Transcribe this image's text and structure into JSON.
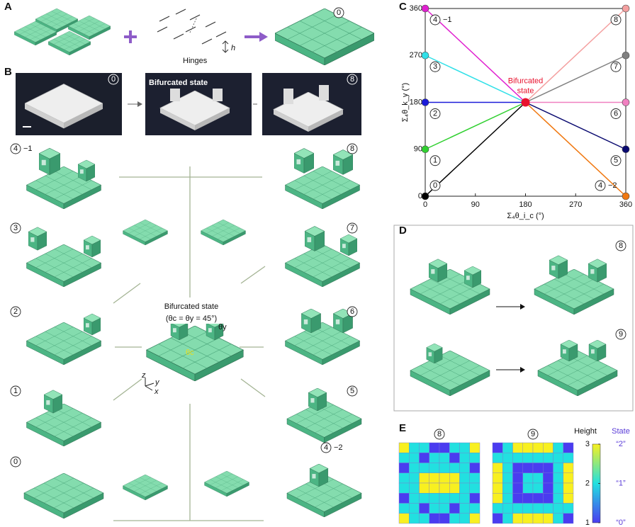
{
  "panel_labels": [
    "A",
    "B",
    "C",
    "D",
    "E"
  ],
  "panel_a": {
    "state": "0",
    "hinges": "Hinges",
    "h": "h"
  },
  "panel_b": {
    "photo_states": [
      "0",
      "8"
    ],
    "photo_caption": "Bifurcated state",
    "center_title": "Bifurcated state",
    "center_subtitle": "(θc = θy = 45°)",
    "angle_y": "θy",
    "angle_c": "θc",
    "axes": [
      "z",
      "y",
      "x"
    ],
    "left_states": [
      {
        "state": "4",
        "suffix": "−1"
      },
      {
        "state": "3"
      },
      {
        "state": "2"
      },
      {
        "state": "1"
      },
      {
        "state": "0"
      }
    ],
    "right_states": [
      {
        "state": "8"
      },
      {
        "state": "7"
      },
      {
        "state": "6"
      },
      {
        "state": "5"
      },
      {
        "state": "4",
        "suffix": "−2"
      }
    ]
  },
  "panel_d": {
    "states": [
      "8",
      "9"
    ]
  },
  "chart_data": [
    {
      "type": "line",
      "xlabel": "Σ₄θ_i_c (°)",
      "ylabel": "Σ₄θ_k_y (°)",
      "xlim": [
        0,
        360
      ],
      "ylim": [
        0,
        360
      ],
      "xticks": [
        0,
        90,
        180,
        270,
        360
      ],
      "yticks": [
        0,
        90,
        180,
        270,
        360
      ],
      "series": [
        {
          "name": "4",
          "suffix": "−1",
          "color": "#e020d0",
          "x": [
            0,
            180
          ],
          "values": [
            360,
            180
          ]
        },
        {
          "name": "3",
          "color": "#30e0e8",
          "x": [
            0,
            180
          ],
          "values": [
            270,
            180
          ]
        },
        {
          "name": "2",
          "color": "#1a1ad8",
          "x": [
            0,
            180
          ],
          "values": [
            180,
            180
          ]
        },
        {
          "name": "1",
          "color": "#30d030",
          "x": [
            0,
            180
          ],
          "values": [
            90,
            180
          ]
        },
        {
          "name": "0",
          "color": "#000000",
          "x": [
            0,
            180
          ],
          "values": [
            0,
            180
          ]
        },
        {
          "name": "8",
          "color": "#f4a0a0",
          "x": [
            360,
            180
          ],
          "values": [
            360,
            180
          ]
        },
        {
          "name": "7",
          "color": "#808080",
          "x": [
            360,
            180
          ],
          "values": [
            270,
            180
          ]
        },
        {
          "name": "6",
          "color": "#f080c0",
          "x": [
            360,
            180
          ],
          "values": [
            180,
            180
          ]
        },
        {
          "name": "5",
          "color": "#0a0a70",
          "x": [
            360,
            180
          ],
          "values": [
            90,
            180
          ]
        },
        {
          "name": "4",
          "suffix": "−2",
          "color": "#f07810",
          "x": [
            360,
            180
          ],
          "values": [
            0,
            180
          ]
        }
      ],
      "annotation": {
        "lines": [
          "Bifurcated",
          "state"
        ],
        "x": 180,
        "y": 180,
        "color": "#e8112d"
      }
    },
    {
      "type": "heatmap",
      "colors": [
        "#4a3cf0",
        "#22e0e0",
        "#f8f020"
      ],
      "panels": [
        {
          "title": "8",
          "values": [
            [
              3,
              2,
              2,
              1,
              1,
              2,
              2,
              3
            ],
            [
              2,
              2,
              1,
              2,
              2,
              1,
              2,
              2
            ],
            [
              1,
              2,
              2,
              2,
              2,
              2,
              2,
              1
            ],
            [
              2,
              2,
              3,
              3,
              3,
              3,
              2,
              2
            ],
            [
              2,
              2,
              3,
              3,
              3,
              3,
              2,
              2
            ],
            [
              1,
              2,
              2,
              2,
              2,
              2,
              2,
              1
            ],
            [
              2,
              2,
              1,
              2,
              2,
              1,
              2,
              2
            ],
            [
              3,
              2,
              2,
              1,
              1,
              2,
              2,
              3
            ]
          ]
        },
        {
          "title": "9",
          "values": [
            [
              1,
              2,
              3,
              3,
              3,
              3,
              2,
              1
            ],
            [
              2,
              2,
              2,
              2,
              2,
              2,
              2,
              2
            ],
            [
              3,
              2,
              1,
              1,
              1,
              1,
              2,
              3
            ],
            [
              3,
              2,
              1,
              2,
              2,
              1,
              2,
              3
            ],
            [
              3,
              2,
              1,
              2,
              2,
              1,
              2,
              3
            ],
            [
              3,
              2,
              1,
              1,
              1,
              1,
              2,
              3
            ],
            [
              2,
              2,
              2,
              2,
              2,
              2,
              2,
              2
            ],
            [
              1,
              2,
              3,
              3,
              3,
              3,
              2,
              1
            ]
          ]
        }
      ],
      "colorbar": {
        "label": "Height",
        "state_label": "State",
        "lim": [
          1,
          3
        ],
        "ticks": [
          1,
          2,
          3
        ],
        "state_ticks": [
          "“0”",
          "“1”",
          "“2”"
        ]
      }
    }
  ]
}
